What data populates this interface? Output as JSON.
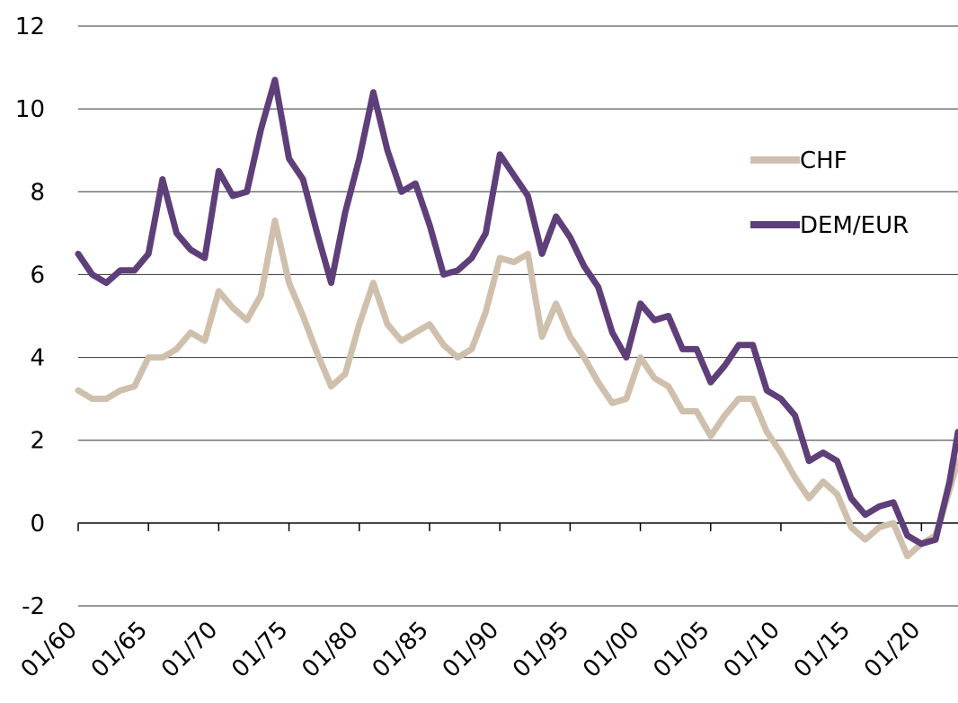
{
  "chart_data": {
    "type": "line",
    "x": [
      1960,
      1961,
      1962,
      1963,
      1964,
      1965,
      1966,
      1967,
      1968,
      1969,
      1970,
      1971,
      1972,
      1973,
      1974,
      1975,
      1976,
      1977,
      1978,
      1979,
      1980,
      1981,
      1982,
      1983,
      1984,
      1985,
      1986,
      1987,
      1988,
      1989,
      1990,
      1991,
      1992,
      1993,
      1994,
      1995,
      1996,
      1997,
      1998,
      1999,
      2000,
      2001,
      2002,
      2003,
      2004,
      2005,
      2006,
      2007,
      2008,
      2009,
      2010,
      2011,
      2012,
      2013,
      2014,
      2015,
      2016,
      2017,
      2018,
      2019,
      2020,
      2021,
      2022,
      2022.6
    ],
    "series": [
      {
        "name": "CHF",
        "color": "#cfc0ad",
        "values": [
          3.2,
          3.0,
          3.0,
          3.2,
          3.3,
          4.0,
          4.0,
          4.2,
          4.6,
          4.4,
          5.6,
          5.2,
          4.9,
          5.5,
          7.3,
          5.8,
          5.0,
          4.1,
          3.3,
          3.6,
          4.8,
          5.8,
          4.8,
          4.4,
          4.6,
          4.8,
          4.3,
          4.0,
          4.2,
          5.1,
          6.4,
          6.3,
          6.5,
          4.5,
          5.3,
          4.5,
          4.0,
          3.4,
          2.9,
          3.0,
          4.0,
          3.5,
          3.3,
          2.7,
          2.7,
          2.1,
          2.6,
          3.0,
          3.0,
          2.2,
          1.7,
          1.1,
          0.6,
          1.0,
          0.7,
          -0.1,
          -0.4,
          -0.1,
          0.0,
          -0.8,
          -0.5,
          -0.3,
          0.8,
          1.5
        ]
      },
      {
        "name": "DEM/EUR",
        "color": "#5e3f79",
        "values": [
          6.5,
          6.0,
          5.8,
          6.1,
          6.1,
          6.5,
          8.3,
          7.0,
          6.6,
          6.4,
          8.5,
          7.9,
          8.0,
          9.5,
          10.7,
          8.8,
          8.3,
          7.0,
          5.8,
          7.5,
          8.8,
          10.4,
          9.0,
          8.0,
          8.2,
          7.2,
          6.0,
          6.1,
          6.4,
          7.0,
          8.9,
          8.4,
          7.9,
          6.5,
          7.4,
          6.9,
          6.2,
          5.7,
          4.6,
          4.0,
          5.3,
          4.9,
          5.0,
          4.2,
          4.2,
          3.4,
          3.8,
          4.3,
          4.3,
          3.2,
          3.0,
          2.6,
          1.5,
          1.7,
          1.5,
          0.6,
          0.2,
          0.4,
          0.5,
          -0.3,
          -0.5,
          -0.4,
          1.0,
          2.2
        ]
      }
    ],
    "xlim": [
      1960,
      2022.6
    ],
    "xticks": [
      {
        "value": 1960,
        "label": "01/60"
      },
      {
        "value": 1965,
        "label": "01/65"
      },
      {
        "value": 1970,
        "label": "01/70"
      },
      {
        "value": 1975,
        "label": "01/75"
      },
      {
        "value": 1980,
        "label": "01/80"
      },
      {
        "value": 1985,
        "label": "01/85"
      },
      {
        "value": 1990,
        "label": "01/90"
      },
      {
        "value": 1995,
        "label": "01/95"
      },
      {
        "value": 2000,
        "label": "01/00"
      },
      {
        "value": 2005,
        "label": "01/05"
      },
      {
        "value": 2010,
        "label": "01/10"
      },
      {
        "value": 2015,
        "label": "01/15"
      },
      {
        "value": 2020,
        "label": "01/20"
      }
    ],
    "ylim": [
      -2,
      12
    ],
    "yticks": [
      -2,
      0,
      2,
      4,
      6,
      8,
      10,
      12
    ],
    "grid": true,
    "legend": "right"
  }
}
